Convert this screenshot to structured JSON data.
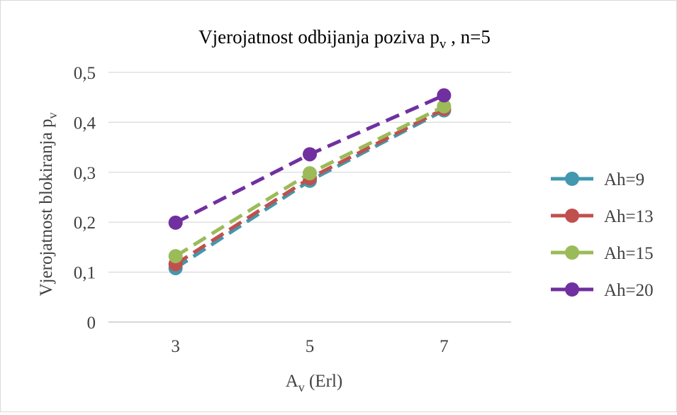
{
  "chart_data": {
    "type": "line",
    "title": "Vjerojatnost odbijanja poziva p",
    "title_sub": "v",
    "title_suffix": " , n=5",
    "xlabel": "A",
    "xlabel_sub": "v",
    "xlabel_suffix": " (Erl)",
    "ylabel": "Vjerojatnost blokiranja p",
    "ylabel_sub": "v",
    "x": [
      3,
      5,
      7
    ],
    "x_ticks": [
      "3",
      "5",
      "7"
    ],
    "y_ticks": [
      "0",
      "0,1",
      "0,2",
      "0,3",
      "0,4",
      "0,5"
    ],
    "ylim": [
      0,
      0.5
    ],
    "grid": true,
    "legend_position": "right",
    "line_style": "dashed",
    "series": [
      {
        "name": "Ah=9",
        "values": [
          0.108,
          0.283,
          0.424
        ],
        "color": "#4198AF"
      },
      {
        "name": "Ah=13",
        "values": [
          0.116,
          0.288,
          0.427
        ],
        "color": "#C0504D"
      },
      {
        "name": "Ah=15",
        "values": [
          0.132,
          0.298,
          0.432
        ],
        "color": "#9BBB59"
      },
      {
        "name": "Ah=20",
        "values": [
          0.199,
          0.336,
          0.454
        ],
        "color": "#7030A0"
      }
    ]
  }
}
